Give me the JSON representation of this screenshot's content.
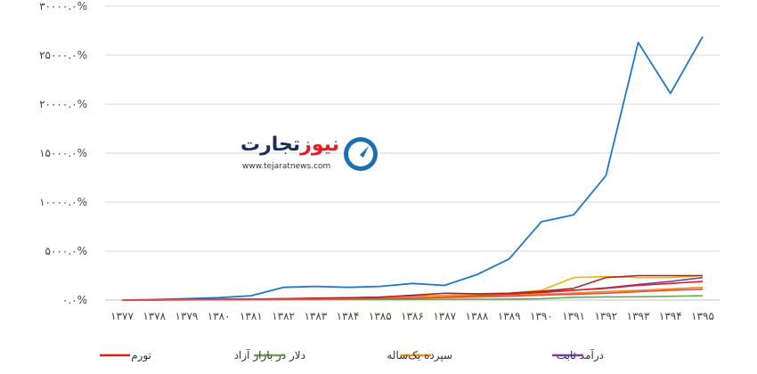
{
  "chart_data": {
    "type": "line",
    "x": [
      "۱۳۷۷",
      "۱۳۷۸",
      "۱۳۷۹",
      "۱۳۸۰",
      "۱۳۸۱",
      "۱۳۸۲",
      "۱۳۸۳",
      "۱۳۸۴",
      "۱۳۸۵",
      "۱۳۸۶",
      "۱۳۸۷",
      "۱۳۸۸",
      "۱۳۸۹",
      "۱۳۹۰",
      "۱۳۹۱",
      "۱۳۹۲",
      "۱۳۹۳",
      "۱۳۹۴",
      "۱۳۹۵"
    ],
    "y_ticks": [
      {
        "value": 0,
        "label": "۰.۰%"
      },
      {
        "value": 5000,
        "label": "۵۰۰۰.۰%"
      },
      {
        "value": 10000,
        "label": "۱۰۰۰۰.۰%"
      },
      {
        "value": 15000,
        "label": "۱۵۰۰۰.۰%"
      },
      {
        "value": 20000,
        "label": "۲۰۰۰۰.۰%"
      },
      {
        "value": 25000,
        "label": "۲۵۰۰۰.۰%"
      },
      {
        "value": 30000,
        "label": "۳۰۰۰۰.۰%"
      }
    ],
    "ylim": [
      0,
      30000
    ],
    "grid": true,
    "legend_position": "bottom",
    "series": [
      {
        "name": "",
        "color": "#1f77c9",
        "in_legend": false,
        "values": [
          0,
          50,
          150,
          250,
          450,
          1300,
          1400,
          1300,
          1400,
          1700,
          1500,
          2600,
          4200,
          8000,
          8700,
          12700,
          26300,
          21100,
          26900
        ]
      },
      {
        "name": "درآمد ثابت",
        "color": "#7b3fa8",
        "in_legend": true,
        "values": [
          0,
          20,
          40,
          70,
          100,
          140,
          180,
          230,
          300,
          380,
          470,
          560,
          680,
          820,
          1000,
          1250,
          1600,
          1900,
          2300
        ]
      },
      {
        "name": "سپرده یک‌ساله",
        "color": "#f28c1b",
        "in_legend": true,
        "values": [
          0,
          20,
          40,
          60,
          90,
          120,
          150,
          190,
          230,
          290,
          350,
          420,
          500,
          600,
          720,
          870,
          1000,
          1150,
          1300
        ]
      },
      {
        "name": "دلار در بازار آزاد",
        "color": "#6aa84f",
        "in_legend": true,
        "values": [
          0,
          30,
          50,
          40,
          50,
          60,
          60,
          60,
          60,
          70,
          80,
          90,
          100,
          150,
          280,
          330,
          340,
          390,
          450
        ]
      },
      {
        "name": "تورم",
        "color": "#d62020",
        "in_legend": true,
        "values": [
          0,
          20,
          40,
          60,
          80,
          110,
          150,
          190,
          240,
          320,
          420,
          520,
          620,
          760,
          1000,
          1200,
          1500,
          1700,
          1900
        ]
      },
      {
        "name": "",
        "color": "#f5b400",
        "in_legend": false,
        "values": [
          0,
          15,
          30,
          50,
          70,
          90,
          120,
          150,
          200,
          300,
          450,
          600,
          700,
          1000,
          2300,
          2400,
          2300,
          2300,
          2500
        ]
      },
      {
        "name": "",
        "color": "#b22222",
        "in_legend": false,
        "values": [
          0,
          20,
          50,
          80,
          100,
          150,
          200,
          250,
          300,
          500,
          700,
          650,
          700,
          900,
          1200,
          2300,
          2500,
          2500,
          2500
        ]
      },
      {
        "name": "",
        "color": "#e5484d",
        "in_legend": false,
        "values": [
          0,
          10,
          20,
          40,
          60,
          80,
          100,
          130,
          160,
          200,
          260,
          320,
          400,
          500,
          600,
          700,
          850,
          1000,
          1100
        ]
      }
    ]
  },
  "logo": {
    "title_part1": "تجارت",
    "title_part2": "نیوز",
    "url": "www.tejaratnews.com",
    "mark_color": "#1a6fb5"
  }
}
